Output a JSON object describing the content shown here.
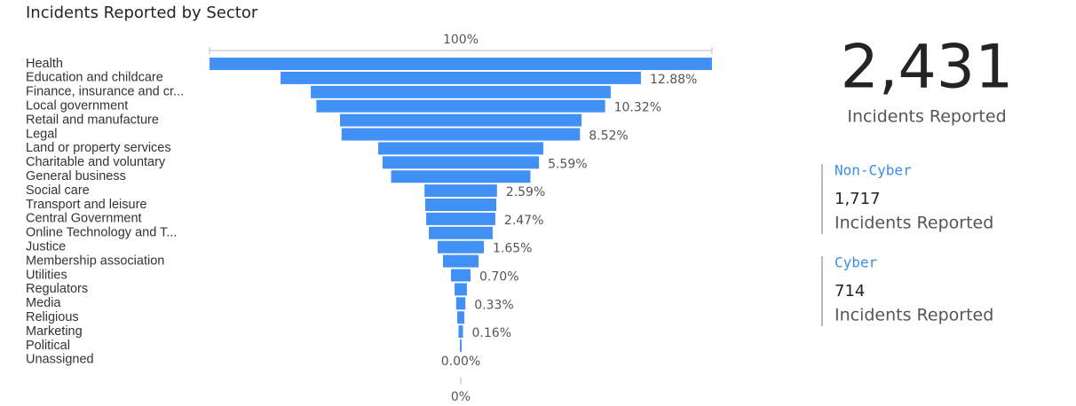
{
  "chart_data": {
    "type": "funnel",
    "title": "Incidents Reported by Sector",
    "categories": [
      "Health",
      "Education and childcare",
      "Finance, insurance and cr...",
      "Local government",
      "Retail and manufacture",
      "Legal",
      "Land or property services",
      "Charitable and voluntary",
      "General business",
      "Social care",
      "Transport and leisure",
      "Central Government",
      "Online Technology and T...",
      "Justice",
      "Membership association",
      "Utilities",
      "Regulators",
      "Media",
      "Religious",
      "Marketing",
      "Political",
      "Unassigned"
    ],
    "values": [
      17.96,
      12.88,
      10.72,
      10.32,
      8.63,
      8.52,
      5.9,
      5.59,
      4.98,
      2.59,
      2.54,
      2.47,
      2.28,
      1.65,
      1.27,
      0.7,
      0.44,
      0.33,
      0.25,
      0.16,
      0.06,
      0
    ],
    "value_labels": [
      null,
      "12.88%",
      null,
      "10.32%",
      null,
      "8.52%",
      null,
      "5.59%",
      null,
      "2.59%",
      null,
      "2.47%",
      null,
      "1.65%",
      null,
      "0.70%",
      null,
      "0.33%",
      null,
      "0.16%",
      null,
      "0.00%"
    ],
    "color": "#4090f5",
    "top_label": "100%",
    "bottom_label": "0%"
  },
  "cards": {
    "total": {
      "value": "2,431",
      "label": "Incidents Reported"
    },
    "items": [
      {
        "name": "Non-Cyber",
        "value": "1,717",
        "label": "Incidents Reported"
      },
      {
        "name": "Cyber",
        "value": "714",
        "label": "Incidents Reported"
      }
    ]
  }
}
